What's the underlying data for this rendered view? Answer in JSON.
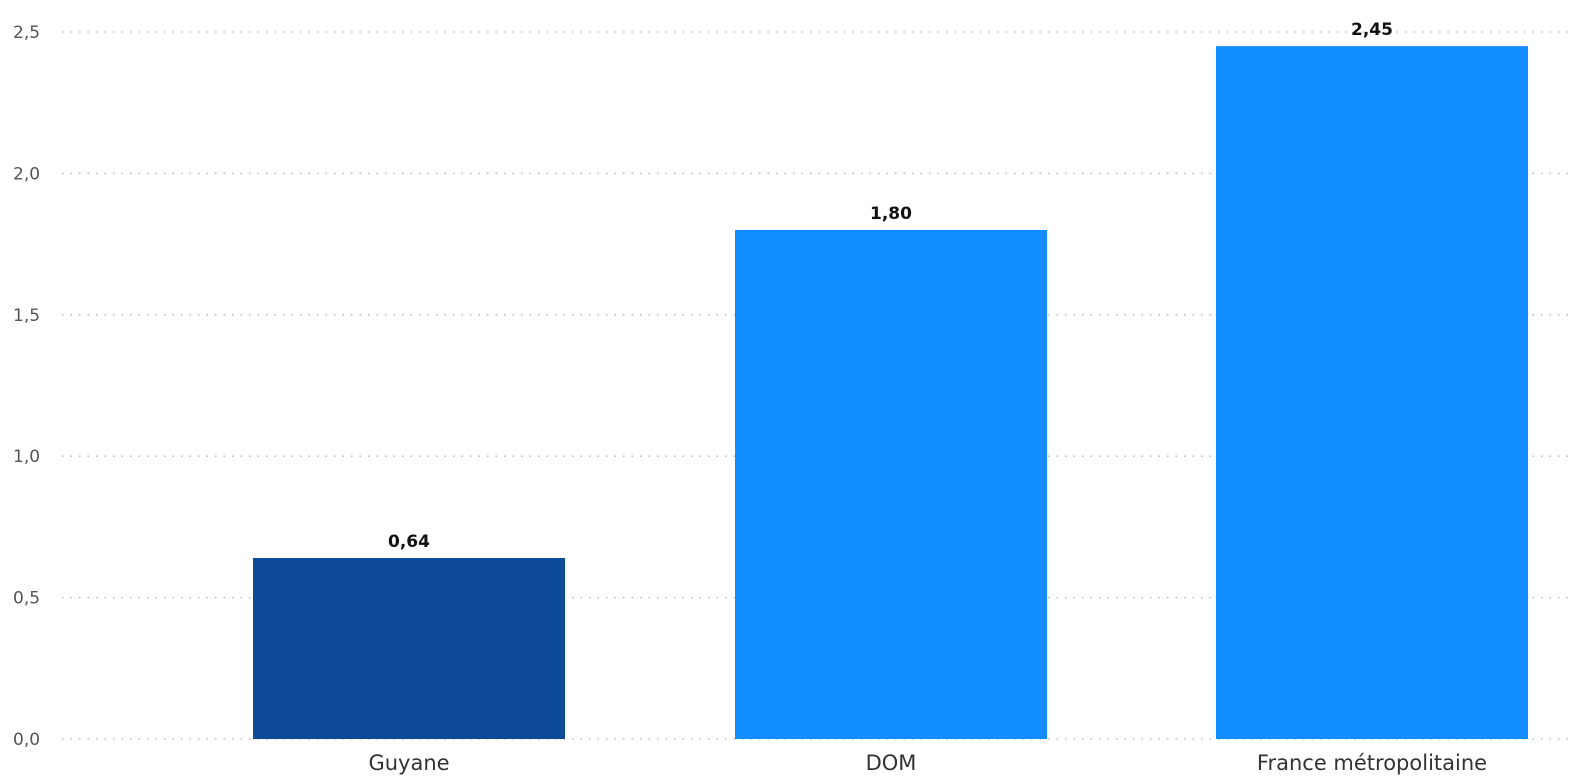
{
  "chart_data": {
    "type": "bar",
    "categories": [
      "Guyane",
      "DOM",
      "France métropolitaine"
    ],
    "values": [
      0.64,
      1.8,
      2.45
    ],
    "data_labels": [
      "0,64",
      "1,80",
      "2,45"
    ],
    "bar_colors": [
      "#0D4A97",
      "#118DFF",
      "#118DFF"
    ],
    "ylim": [
      0,
      2.5
    ],
    "y_ticks": [
      {
        "value": 0.0,
        "label": "0,0"
      },
      {
        "value": 0.5,
        "label": "0,5"
      },
      {
        "value": 1.0,
        "label": "1,0"
      },
      {
        "value": 1.5,
        "label": "1,5"
      },
      {
        "value": 2.0,
        "label": "2,0"
      },
      {
        "value": 2.5,
        "label": "2,5"
      }
    ],
    "grid": true,
    "title": "",
    "xlabel": "",
    "ylabel": ""
  }
}
